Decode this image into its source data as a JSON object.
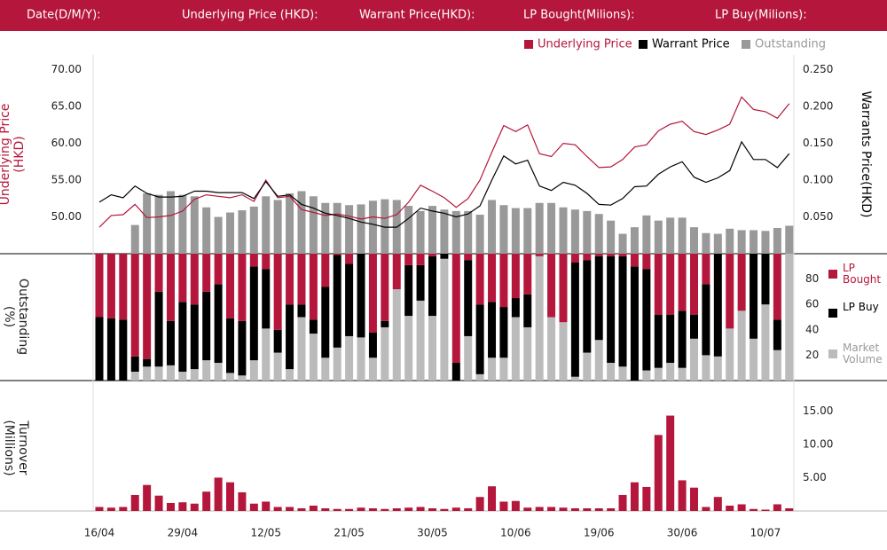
{
  "header": {
    "labels": [
      "Date(D/M/Y):",
      "Underlying Price (HKD):",
      "Warrant  Price(HKD):",
      "LP Bought(Milions):",
      "LP Buy(Milions):"
    ]
  },
  "chart_data": [
    {
      "type": "line",
      "ylabel": "Underlying Price (HKD)",
      "y2label": "Warrants  Price(HKD)",
      "ylim": [
        45,
        72
      ],
      "yticks": [
        {
          "value": 50,
          "label": "50.00"
        },
        {
          "value": 55,
          "label": "55.00"
        },
        {
          "value": 60,
          "label": "60.00"
        },
        {
          "value": 65,
          "label": "65.00"
        },
        {
          "value": 70,
          "label": "70.00"
        }
      ],
      "y2lim": [
        0,
        0.27
      ],
      "y2ticks": [
        {
          "value": 0.05,
          "label": "0.050"
        },
        {
          "value": 0.1,
          "label": "0.100"
        },
        {
          "value": 0.15,
          "label": "0.150"
        },
        {
          "value": 0.2,
          "label": "0.200"
        },
        {
          "value": 0.25,
          "label": "0.250"
        }
      ],
      "series": [
        {
          "name": "Underlying Price",
          "color": "#b5163b",
          "type": "line",
          "values": [
            48.6,
            50.2,
            50.3,
            51.7,
            49.9,
            50.0,
            50.2,
            50.8,
            52.4,
            53.0,
            52.8,
            52.6,
            53.0,
            52.1,
            55.0,
            52.6,
            52.8,
            51.0,
            50.6,
            50.2,
            50.4,
            50.1,
            49.7,
            50.0,
            49.8,
            50.3,
            52.0,
            54.3,
            53.5,
            52.6,
            51.3,
            52.5,
            55.0,
            58.8,
            62.4,
            61.6,
            62.5,
            58.6,
            58.2,
            60.0,
            59.8,
            58.2,
            56.7,
            56.8,
            57.8,
            59.5,
            59.8,
            61.7,
            62.6,
            63.0,
            61.6,
            61.2,
            61.8,
            62.6,
            66.3,
            64.6,
            64.3,
            63.4,
            65.4
          ]
        },
        {
          "name": "Warrant  Price",
          "color": "#000000",
          "type": "line",
          "axis": "y2",
          "values": [
            0.07,
            0.08,
            0.076,
            0.092,
            0.082,
            0.077,
            0.077,
            0.078,
            0.085,
            0.085,
            0.083,
            0.083,
            0.083,
            0.075,
            0.098,
            0.078,
            0.08,
            0.067,
            0.062,
            0.055,
            0.052,
            0.048,
            0.043,
            0.04,
            0.036,
            0.036,
            0.048,
            0.062,
            0.058,
            0.055,
            0.05,
            0.054,
            0.065,
            0.1,
            0.133,
            0.122,
            0.127,
            0.092,
            0.086,
            0.097,
            0.093,
            0.082,
            0.067,
            0.066,
            0.075,
            0.091,
            0.092,
            0.108,
            0.118,
            0.125,
            0.104,
            0.097,
            0.103,
            0.113,
            0.152,
            0.128,
            0.128,
            0.117,
            0.136
          ]
        },
        {
          "name": "Outstanding",
          "color": "#999999",
          "type": "bar",
          "values": [
            null,
            null,
            null,
            48.9,
            53.2,
            53.0,
            53.5,
            53.0,
            52.8,
            51.3,
            50.0,
            50.6,
            50.9,
            51.4,
            52.8,
            52.3,
            53.2,
            53.5,
            52.8,
            51.9,
            51.9,
            51.6,
            51.7,
            52.2,
            52.4,
            52.3,
            51.5,
            50.8,
            51.5,
            51.0,
            50.8,
            50.8,
            50.3,
            52.3,
            51.6,
            51.2,
            51.2,
            51.9,
            51.9,
            51.3,
            51.0,
            50.8,
            50.4,
            49.5,
            47.7,
            48.6,
            50.2,
            49.5,
            49.9,
            49.9,
            48.6,
            47.8,
            47.7,
            48.4,
            48.2,
            48.2,
            48.1,
            48.5,
            48.8
          ]
        }
      ]
    },
    {
      "type": "stacked_bar",
      "ylabel": "Outstanding (%)",
      "ylim": [
        0,
        100
      ],
      "yticks": [
        20,
        40,
        60,
        80
      ],
      "series": [
        {
          "name": "LP Bought",
          "color": "#b5163b",
          "values": [
            50,
            51,
            52,
            81,
            83,
            30,
            53,
            38,
            40,
            30,
            24,
            51,
            53,
            10,
            12,
            60,
            40,
            40,
            52,
            26,
            1,
            8,
            0,
            62,
            53,
            28,
            9,
            9,
            2,
            0,
            86,
            5,
            40,
            38,
            42,
            35,
            32,
            2,
            50,
            54,
            7,
            5,
            2,
            2,
            2,
            10,
            12,
            48,
            48,
            45,
            48,
            24,
            0,
            59,
            45,
            0,
            0,
            52,
            0
          ]
        },
        {
          "name": "LP Buy",
          "color": "#000000",
          "values": [
            50,
            49,
            48,
            12,
            6,
            59,
            35,
            55,
            51,
            54,
            62,
            43,
            43,
            74,
            47,
            18,
            51,
            10,
            11,
            56,
            73,
            57,
            66,
            20,
            5,
            0,
            40,
            28,
            47,
            4,
            14,
            60,
            55,
            44,
            40,
            15,
            26,
            0,
            0,
            0,
            90,
            73,
            66,
            84,
            87,
            90,
            80,
            42,
            38,
            45,
            19,
            56,
            81,
            0,
            0,
            67,
            40,
            24,
            0
          ]
        },
        {
          "name": "Market Volume",
          "color": "#bbbbbb",
          "values": [
            0,
            0,
            0,
            7,
            11,
            11,
            12,
            7,
            9,
            16,
            14,
            6,
            4,
            16,
            41,
            22,
            9,
            50,
            37,
            18,
            26,
            35,
            34,
            18,
            42,
            72,
            51,
            63,
            51,
            96,
            0,
            35,
            5,
            18,
            18,
            50,
            42,
            98,
            50,
            46,
            3,
            22,
            32,
            14,
            11,
            0,
            8,
            10,
            14,
            10,
            33,
            20,
            19,
            41,
            55,
            33,
            60,
            24,
            100
          ]
        }
      ]
    },
    {
      "type": "bar",
      "ylabel": "Turnover (Millions)",
      "categories": [
        "16/04",
        null,
        null,
        null,
        null,
        null,
        null,
        "29/04",
        null,
        null,
        null,
        null,
        null,
        null,
        "12/05",
        null,
        null,
        null,
        null,
        null,
        null,
        "21/05",
        null,
        null,
        null,
        null,
        null,
        null,
        "30/05",
        null,
        null,
        null,
        null,
        null,
        null,
        "10/06",
        null,
        null,
        null,
        null,
        null,
        null,
        "19/06",
        null,
        null,
        null,
        null,
        null,
        null,
        "30/06",
        null,
        null,
        null,
        null,
        null,
        null,
        "10/07",
        null,
        null
      ],
      "values": [
        0.6,
        0.5,
        0.6,
        2.4,
        3.9,
        2.3,
        1.2,
        1.3,
        1.1,
        2.9,
        5.0,
        4.3,
        2.8,
        1.1,
        1.4,
        0.6,
        0.6,
        0.4,
        0.8,
        0.4,
        0.3,
        0.3,
        0.5,
        0.4,
        0.3,
        0.4,
        0.5,
        0.6,
        0.4,
        0.3,
        0.5,
        0.4,
        2.1,
        3.7,
        1.4,
        1.5,
        0.5,
        0.6,
        0.6,
        0.5,
        0.4,
        0.4,
        0.4,
        0.4,
        2.4,
        4.3,
        3.6,
        11.4,
        14.3,
        4.6,
        3.5,
        0.6,
        2.1,
        0.8,
        1.0,
        0.3,
        0.2,
        1.0,
        0.4
      ],
      "color": "#b5163b",
      "ylim": [
        0,
        16.5
      ],
      "yticks": [
        {
          "value": 5,
          "label": "5.00"
        },
        {
          "value": 10,
          "label": "10.00"
        },
        {
          "value": 15,
          "label": "15.00"
        }
      ]
    }
  ]
}
